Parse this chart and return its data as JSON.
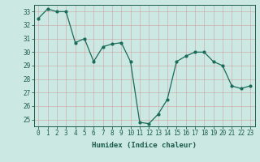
{
  "x": [
    0,
    1,
    2,
    3,
    4,
    5,
    6,
    7,
    8,
    9,
    10,
    11,
    12,
    13,
    14,
    15,
    16,
    17,
    18,
    19,
    20,
    21,
    22,
    23
  ],
  "y": [
    32.5,
    33.2,
    33.0,
    33.0,
    30.7,
    31.0,
    29.3,
    30.4,
    30.6,
    30.7,
    29.3,
    24.8,
    24.7,
    25.4,
    26.5,
    29.3,
    29.7,
    30.0,
    30.0,
    29.3,
    29.0,
    27.5,
    27.3,
    27.5
  ],
  "xlabel": "Humidex (Indice chaleur)",
  "ylabel": "",
  "title": "",
  "bg_color": "#cce8e2",
  "line_color": "#1a6b5a",
  "marker_color": "#1a6b5a",
  "grid_color": "#99ccbb",
  "ylim": [
    24.5,
    33.5
  ],
  "yticks": [
    25,
    26,
    27,
    28,
    29,
    30,
    31,
    32,
    33
  ],
  "xticks": [
    0,
    1,
    2,
    3,
    4,
    5,
    6,
    7,
    8,
    9,
    10,
    11,
    12,
    13,
    14,
    15,
    16,
    17,
    18,
    19,
    20,
    21,
    22,
    23
  ],
  "tick_color": "#1a5c4a",
  "label_fontsize": 6.5,
  "tick_fontsize": 5.5
}
